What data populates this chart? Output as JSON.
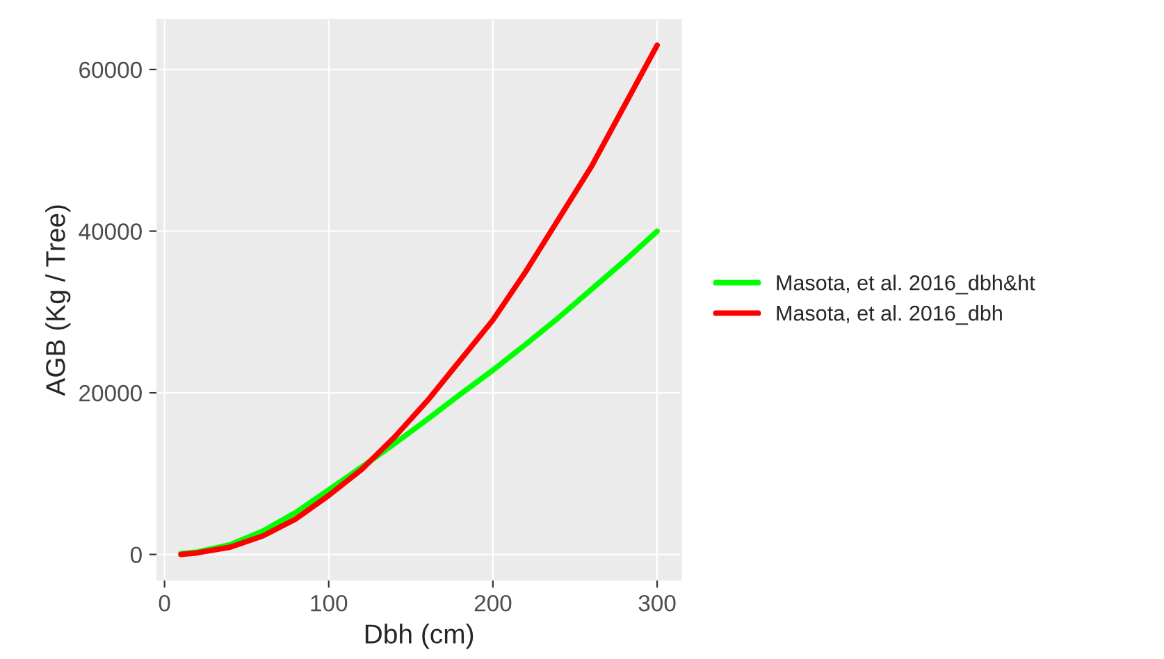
{
  "chart_data": {
    "type": "line",
    "xlabel": "Dbh (cm)",
    "ylabel": "AGB (Kg / Tree)",
    "x": [
      10,
      20,
      40,
      60,
      80,
      100,
      120,
      140,
      160,
      180,
      200,
      220,
      240,
      260,
      280,
      300
    ],
    "series": [
      {
        "name": "Masota, et al. 2016_dbh&ht",
        "color": "#00ff00",
        "values": [
          100,
          300,
          1200,
          2900,
          5200,
          8000,
          10800,
          13700,
          16700,
          19800,
          22800,
          26000,
          29300,
          32800,
          36300,
          40000
        ]
      },
      {
        "name": "Masota, et al. 2016_dbh",
        "color": "#ff0000",
        "values": [
          0,
          200,
          900,
          2300,
          4400,
          7300,
          10500,
          14500,
          19000,
          24000,
          29000,
          35000,
          41500,
          48000,
          55500,
          63000
        ]
      }
    ],
    "xlim": [
      -4.5,
      314.5
    ],
    "ylim": [
      -3150,
      66150
    ],
    "xticks": [
      0,
      100,
      200,
      300
    ],
    "yticks": [
      0,
      20000,
      40000,
      60000
    ],
    "grid": true,
    "legend": "right",
    "line_style": "solid"
  }
}
